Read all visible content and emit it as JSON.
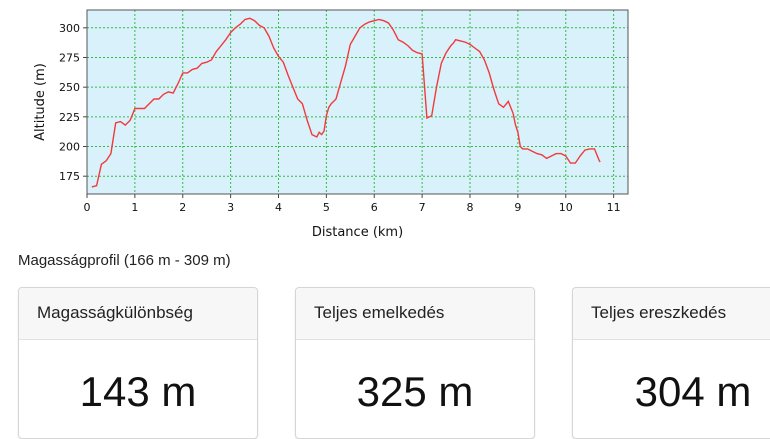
{
  "chart_data": {
    "type": "line",
    "xlabel": "Distance (km)",
    "ylabel": "Altitude (m)",
    "xlim": [
      0,
      11.3
    ],
    "ylim": [
      160,
      315
    ],
    "x_ticks": [
      "0",
      "1",
      "2",
      "3",
      "4",
      "5",
      "6",
      "7",
      "8",
      "9",
      "10",
      "11"
    ],
    "y_ticks": [
      "175",
      "200",
      "225",
      "250",
      "275",
      "300"
    ],
    "grid": true,
    "line_color": "#f23a3a",
    "plot_background": "#d8f1fb",
    "grid_color": "#33bb44",
    "series": [
      {
        "x": [
          0.1,
          0.2,
          0.3,
          0.4,
          0.5,
          0.6,
          0.7,
          0.8,
          0.9,
          1.0,
          1.1,
          1.2,
          1.3,
          1.4,
          1.5,
          1.6,
          1.7,
          1.8,
          1.9,
          2.0,
          2.1,
          2.2,
          2.3,
          2.4,
          2.5,
          2.6,
          2.7,
          2.8,
          2.9,
          3.0,
          3.1,
          3.2,
          3.3,
          3.4,
          3.5,
          3.6,
          3.7,
          3.8,
          3.9,
          4.0,
          4.1,
          4.2,
          4.3,
          4.4,
          4.5,
          4.6,
          4.7,
          4.8,
          4.85,
          4.9,
          4.95,
          5.0,
          5.05,
          5.1,
          5.2,
          5.3,
          5.4,
          5.5,
          5.6,
          5.7,
          5.8,
          5.9,
          6.0,
          6.1,
          6.2,
          6.3,
          6.4,
          6.5,
          6.6,
          6.7,
          6.8,
          6.9,
          7.0,
          7.1,
          7.2,
          7.3,
          7.4,
          7.5,
          7.55,
          7.6,
          7.65,
          7.7,
          7.8,
          7.9,
          8.0,
          8.1,
          8.2,
          8.3,
          8.4,
          8.5,
          8.6,
          8.7,
          8.8,
          8.9,
          8.95,
          9.0,
          9.05,
          9.1,
          9.2,
          9.3,
          9.4,
          9.5,
          9.6,
          9.7,
          9.8,
          9.9,
          10.0,
          10.1,
          10.2,
          10.3,
          10.4,
          10.5,
          10.6,
          10.7,
          10.72
        ],
        "y": [
          166,
          167,
          185,
          188,
          194,
          220,
          221,
          218,
          222,
          232,
          232,
          232,
          236,
          240,
          240,
          244,
          246,
          245,
          253,
          262,
          262,
          265,
          266,
          270,
          271,
          273,
          280,
          285,
          290,
          296,
          300,
          303,
          307,
          308,
          306,
          302,
          300,
          293,
          283,
          276,
          271,
          260,
          250,
          240,
          236,
          222,
          210,
          208,
          212,
          210,
          213,
          226,
          233,
          236,
          240,
          254,
          268,
          286,
          293,
          300,
          303,
          305,
          306,
          307,
          306,
          304,
          298,
          290,
          288,
          285,
          281,
          279,
          278,
          224,
          226,
          250,
          270,
          279,
          282,
          285,
          287,
          290,
          289,
          288,
          286,
          283,
          280,
          273,
          262,
          248,
          236,
          233,
          238,
          228,
          218,
          212,
          200,
          198,
          198,
          196,
          194,
          193,
          190,
          192,
          194,
          194,
          192,
          186,
          186,
          192,
          197,
          198,
          198,
          188,
          187
        ]
      }
    ]
  },
  "profile_caption": "Magasságprofil (166 m - 309 m)",
  "cards": [
    {
      "title": "Magasságkülönbség",
      "value": "143 m"
    },
    {
      "title": "Teljes emelkedés",
      "value": "325 m"
    },
    {
      "title": "Teljes ereszkedés",
      "value": "304 m"
    }
  ]
}
